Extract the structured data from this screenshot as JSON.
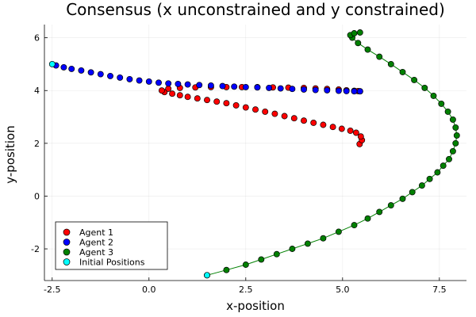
{
  "chart_data": {
    "type": "scatter",
    "title": "Consensus (x unconstrained and y constrained)",
    "xlabel": "x-position",
    "ylabel": "y-position",
    "xlim": [
      -2.7,
      8.2
    ],
    "ylim": [
      -3.2,
      6.5
    ],
    "xticks": [
      -2.5,
      0.0,
      2.5,
      5.0,
      7.5
    ],
    "xtick_labels": [
      "-2.5",
      "0.0",
      "2.5",
      "5.0",
      "7.5"
    ],
    "yticks": [
      -2,
      0,
      2,
      4,
      6
    ],
    "ytick_labels": [
      "-2",
      "0",
      "2",
      "4",
      "6"
    ],
    "grid": true,
    "legend_position": "bottom-left",
    "series": [
      {
        "name": "Agent 1",
        "color": "#ff0000",
        "connected": false,
        "points": [
          [
            5.44,
            1.97
          ],
          [
            5.5,
            2.12
          ],
          [
            5.47,
            2.26
          ],
          [
            5.35,
            2.4
          ],
          [
            5.2,
            2.48
          ],
          [
            4.98,
            2.55
          ],
          [
            4.75,
            2.62
          ],
          [
            4.5,
            2.7
          ],
          [
            4.25,
            2.78
          ],
          [
            4.0,
            2.86
          ],
          [
            3.75,
            2.95
          ],
          [
            3.5,
            3.03
          ],
          [
            3.25,
            3.12
          ],
          [
            3.0,
            3.2
          ],
          [
            2.75,
            3.28
          ],
          [
            2.5,
            3.36
          ],
          [
            2.25,
            3.44
          ],
          [
            2.0,
            3.52
          ],
          [
            1.75,
            3.58
          ],
          [
            1.5,
            3.64
          ],
          [
            1.25,
            3.7
          ],
          [
            1.0,
            3.76
          ],
          [
            0.8,
            3.82
          ],
          [
            0.6,
            3.88
          ],
          [
            0.4,
            3.94
          ],
          [
            0.33,
            4.0
          ],
          [
            0.5,
            4.07
          ],
          [
            0.8,
            4.1
          ],
          [
            1.2,
            4.12
          ],
          [
            1.6,
            4.13
          ],
          [
            2.0,
            4.13
          ],
          [
            2.4,
            4.13
          ],
          [
            2.8,
            4.13
          ],
          [
            3.2,
            4.12
          ],
          [
            3.6,
            4.11
          ],
          [
            4.0,
            4.1
          ],
          [
            4.3,
            4.08
          ],
          [
            4.6,
            4.06
          ],
          [
            4.9,
            4.04
          ],
          [
            5.1,
            4.01
          ],
          [
            5.3,
            3.99
          ],
          [
            5.4,
            3.98
          ],
          [
            5.45,
            3.97
          ]
        ]
      },
      {
        "name": "Agent 2",
        "color": "#0000ff",
        "connected": false,
        "points": [
          [
            -2.4,
            4.95
          ],
          [
            -2.2,
            4.88
          ],
          [
            -2.0,
            4.82
          ],
          [
            -1.75,
            4.76
          ],
          [
            -1.5,
            4.69
          ],
          [
            -1.25,
            4.62
          ],
          [
            -1.0,
            4.55
          ],
          [
            -0.75,
            4.49
          ],
          [
            -0.5,
            4.43
          ],
          [
            -0.25,
            4.38
          ],
          [
            0.0,
            4.34
          ],
          [
            0.25,
            4.3
          ],
          [
            0.5,
            4.27
          ],
          [
            0.75,
            4.25
          ],
          [
            1.0,
            4.23
          ],
          [
            1.3,
            4.21
          ],
          [
            1.6,
            4.19
          ],
          [
            1.9,
            4.17
          ],
          [
            2.2,
            4.15
          ],
          [
            2.5,
            4.13
          ],
          [
            2.8,
            4.12
          ],
          [
            3.1,
            4.1
          ],
          [
            3.4,
            4.08
          ],
          [
            3.7,
            4.06
          ],
          [
            4.0,
            4.04
          ],
          [
            4.3,
            4.02
          ],
          [
            4.6,
            4.01
          ],
          [
            4.9,
            3.99
          ],
          [
            5.1,
            3.98
          ],
          [
            5.3,
            3.97
          ],
          [
            5.45,
            3.97
          ]
        ]
      },
      {
        "name": "Agent 3",
        "color": "#008000",
        "connected": true,
        "points": [
          [
            1.5,
            -3.0
          ],
          [
            2.0,
            -2.8
          ],
          [
            2.5,
            -2.6
          ],
          [
            2.9,
            -2.4
          ],
          [
            3.3,
            -2.2
          ],
          [
            3.7,
            -2.0
          ],
          [
            4.1,
            -1.8
          ],
          [
            4.5,
            -1.6
          ],
          [
            4.9,
            -1.35
          ],
          [
            5.3,
            -1.1
          ],
          [
            5.65,
            -0.85
          ],
          [
            5.95,
            -0.6
          ],
          [
            6.25,
            -0.35
          ],
          [
            6.55,
            -0.1
          ],
          [
            6.8,
            0.15
          ],
          [
            7.05,
            0.4
          ],
          [
            7.25,
            0.65
          ],
          [
            7.45,
            0.9
          ],
          [
            7.6,
            1.15
          ],
          [
            7.75,
            1.4
          ],
          [
            7.85,
            1.7
          ],
          [
            7.92,
            2.0
          ],
          [
            7.95,
            2.3
          ],
          [
            7.92,
            2.6
          ],
          [
            7.85,
            2.9
          ],
          [
            7.72,
            3.2
          ],
          [
            7.55,
            3.5
          ],
          [
            7.35,
            3.8
          ],
          [
            7.12,
            4.1
          ],
          [
            6.85,
            4.4
          ],
          [
            6.55,
            4.7
          ],
          [
            6.25,
            5.0
          ],
          [
            5.95,
            5.28
          ],
          [
            5.65,
            5.55
          ],
          [
            5.4,
            5.8
          ],
          [
            5.25,
            6.0
          ],
          [
            5.2,
            6.1
          ],
          [
            5.3,
            6.17
          ],
          [
            5.45,
            6.2
          ]
        ]
      },
      {
        "name": "Initial Positions",
        "color": "#00ffff",
        "connected": false,
        "points": [
          [
            -2.5,
            5.0
          ],
          [
            1.5,
            -3.0
          ]
        ]
      }
    ]
  }
}
